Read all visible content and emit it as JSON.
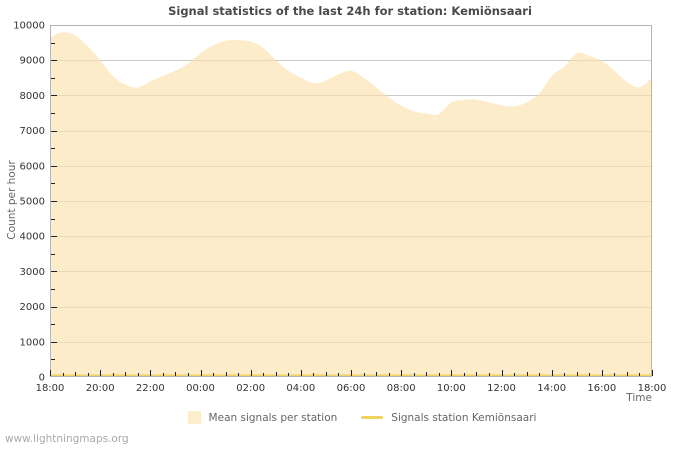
{
  "title": "Signal statistics of the last 24h for station: Kemiönsaari",
  "watermark": "www.lightningmaps.org",
  "axes": {
    "y_label": "Count per hour",
    "x_label": "Time",
    "y_ticks": [
      0,
      1000,
      2000,
      3000,
      4000,
      5000,
      6000,
      7000,
      8000,
      9000,
      10000
    ],
    "x_tick_labels": [
      "18:00",
      "20:00",
      "22:00",
      "00:00",
      "02:00",
      "04:00",
      "06:00",
      "08:00",
      "10:00",
      "12:00",
      "14:00",
      "16:00",
      "18:00"
    ]
  },
  "legend": {
    "area": {
      "label": "Mean signals per station",
      "swatch_color": "#fcedcb"
    },
    "line": {
      "label": "Signals station Kemiönsaari",
      "color": "#f2d25e"
    }
  },
  "colors": {
    "area_fill": "rgba(250,225,168,0.62)",
    "station_line": "#f2d25e",
    "gridline": "#c9c9c9",
    "plot_border": "#b5b5b5",
    "tick": "#222222"
  },
  "chart_data": {
    "type": "area",
    "title": "Signal statistics of the last 24h for station: Kemiönsaari",
    "xlabel": "Time",
    "ylabel": "Count per hour",
    "ylim": [
      0,
      10000
    ],
    "grid": "horizontal, every 1000; minor ticks every 500 (y) and 30 min (x)",
    "legend_position": "bottom-center",
    "x": [
      "18:00",
      "18:30",
      "19:00",
      "19:30",
      "20:00",
      "20:30",
      "21:00",
      "21:30",
      "22:00",
      "22:30",
      "23:00",
      "23:30",
      "00:00",
      "00:30",
      "01:00",
      "01:30",
      "02:00",
      "02:30",
      "03:00",
      "03:30",
      "04:00",
      "04:30",
      "05:00",
      "05:30",
      "06:00",
      "06:30",
      "07:00",
      "07:30",
      "08:00",
      "08:30",
      "09:00",
      "09:30",
      "10:00",
      "10:30",
      "11:00",
      "11:30",
      "12:00",
      "12:30",
      "13:00",
      "13:30",
      "14:00",
      "14:30",
      "15:00",
      "15:30",
      "16:00",
      "16:30",
      "17:00",
      "17:30",
      "18:00"
    ],
    "series": [
      {
        "name": "Mean signals per station",
        "type": "area",
        "color": "rgba(250,225,168,0.62)",
        "values": [
          9650,
          9790,
          9710,
          9400,
          9000,
          8550,
          8310,
          8220,
          8400,
          8550,
          8700,
          8900,
          9200,
          9420,
          9550,
          9570,
          9530,
          9350,
          9000,
          8700,
          8500,
          8350,
          8420,
          8600,
          8700,
          8500,
          8240,
          7950,
          7710,
          7550,
          7490,
          7470,
          7800,
          7870,
          7880,
          7800,
          7720,
          7690,
          7800,
          8050,
          8550,
          8820,
          9200,
          9120,
          8980,
          8700,
          8380,
          8230,
          8500
        ]
      },
      {
        "name": "Signals station Kemiönsaari",
        "type": "line",
        "color": "#f2d25e",
        "values": [
          0,
          0,
          0,
          0,
          0,
          0,
          0,
          0,
          0,
          0,
          0,
          0,
          0,
          0,
          0,
          0,
          0,
          0,
          0,
          0,
          0,
          0,
          0,
          0,
          0,
          0,
          0,
          0,
          0,
          0,
          0,
          0,
          0,
          0,
          0,
          0,
          0,
          0,
          0,
          0,
          0,
          0,
          0,
          0,
          0,
          0,
          0,
          0,
          0
        ]
      }
    ]
  }
}
